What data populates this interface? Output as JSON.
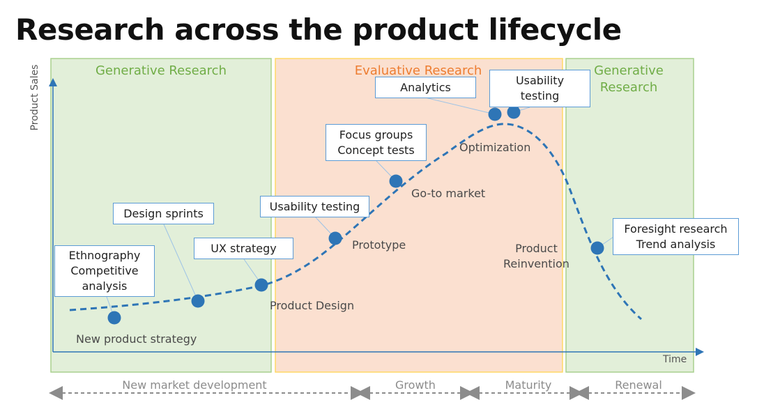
{
  "title": "Research across the product lifecycle",
  "zones": [
    {
      "id": "generative-left",
      "label": "Generative Research",
      "fill": "#e2efd9",
      "border": "#a9d18e",
      "label_color": "#70ad47"
    },
    {
      "id": "evaluative",
      "label": "Evaluative Research",
      "fill": "#fbe0d0",
      "border": "#ffd966",
      "label_color": "#ed7d31"
    },
    {
      "id": "generative-right",
      "label": "Generative Research",
      "fill": "#e2efd9",
      "border": "#a9d18e",
      "label_color": "#70ad47"
    }
  ],
  "axes": {
    "y_label": "Product Sales",
    "x_label": "Time",
    "color": "#2e75b6"
  },
  "curve_color": "#2e75b6",
  "callouts": [
    {
      "id": "ethnography",
      "text": "Ethnography\nCompetitive\nanalysis"
    },
    {
      "id": "design-sprints",
      "text": "Design sprints"
    },
    {
      "id": "ux-strategy",
      "text": "UX strategy"
    },
    {
      "id": "usability-testing-1",
      "text": "Usability testing"
    },
    {
      "id": "focus-groups",
      "text": "Focus groups\nConcept tests"
    },
    {
      "id": "analytics",
      "text": "Analytics"
    },
    {
      "id": "usability-testing-2",
      "text": "Usability\ntesting"
    },
    {
      "id": "foresight",
      "text": "Foresight research\nTrend analysis"
    }
  ],
  "stages": [
    {
      "id": "new-product-strategy",
      "text": "New product strategy"
    },
    {
      "id": "product-design",
      "text": "Product Design"
    },
    {
      "id": "prototype",
      "text": "Prototype"
    },
    {
      "id": "go-to-market",
      "text": "Go-to market"
    },
    {
      "id": "optimization",
      "text": "Optimization"
    },
    {
      "id": "product-reinvention",
      "text": "Product\nReinvention"
    }
  ],
  "phases": [
    {
      "id": "new-market-development",
      "text": "New market development"
    },
    {
      "id": "growth",
      "text": "Growth"
    },
    {
      "id": "maturity",
      "text": "Maturity"
    },
    {
      "id": "renewal",
      "text": "Renewal"
    }
  ]
}
